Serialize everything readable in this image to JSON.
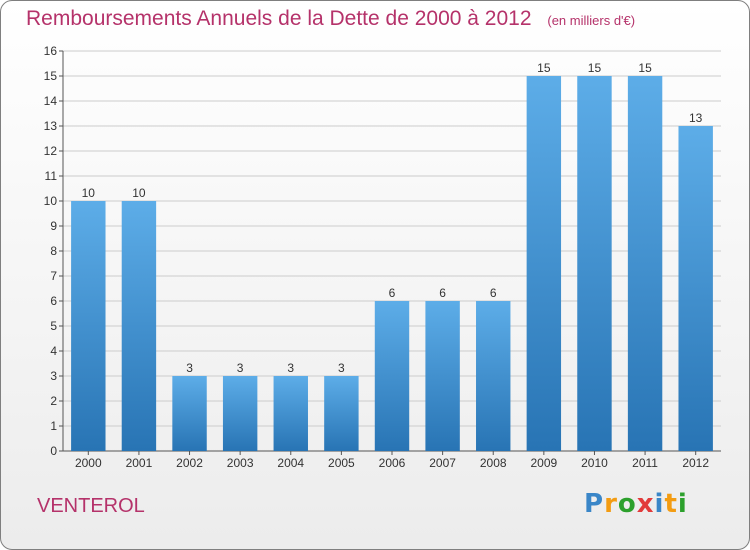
{
  "title": "Remboursements Annuels de la Dette de 2000 à 2012",
  "subtitle": "(en milliers d'€)",
  "commune": "VENTEROL",
  "logo": {
    "letters": [
      "P",
      "r",
      "o",
      "x",
      "i",
      "t",
      "i"
    ],
    "colors": [
      "#3a86c8",
      "#f39c12",
      "#2ca02c",
      "#e23b3b",
      "#3a86c8",
      "#f39c12",
      "#2ca02c"
    ]
  },
  "colors": {
    "bar_light": "#5dade8",
    "bar_dark": "#2874b4",
    "title": "#b5326a",
    "grid": "#cccccc"
  },
  "chart_data": {
    "type": "bar",
    "categories": [
      "2000",
      "2001",
      "2002",
      "2003",
      "2004",
      "2005",
      "2006",
      "2007",
      "2008",
      "2009",
      "2010",
      "2011",
      "2012"
    ],
    "values": [
      10,
      10,
      3,
      3,
      3,
      3,
      6,
      6,
      6,
      15,
      15,
      15,
      13
    ],
    "data_labels": [
      "10",
      "10",
      "3",
      "3",
      "3",
      "3",
      "6",
      "6",
      "6",
      "15",
      "15",
      "15",
      "13"
    ],
    "title": "Remboursements Annuels de la Dette de 2000 à 2012",
    "ylim": [
      0,
      16
    ],
    "yticks": [
      0,
      1,
      2,
      3,
      4,
      5,
      6,
      7,
      8,
      9,
      10,
      11,
      12,
      13,
      14,
      15,
      16
    ],
    "grid": true
  }
}
